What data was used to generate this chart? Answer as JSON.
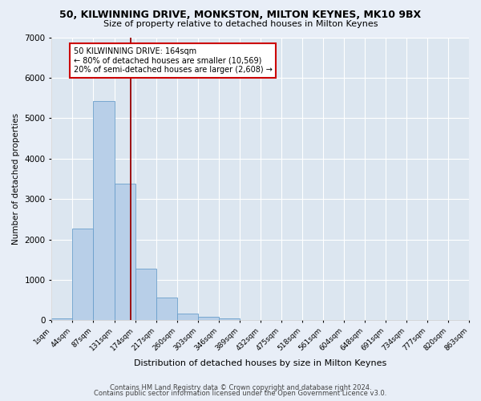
{
  "title1": "50, KILWINNING DRIVE, MONKSTON, MILTON KEYNES, MK10 9BX",
  "title2": "Size of property relative to detached houses in Milton Keynes",
  "xlabel": "Distribution of detached houses by size in Milton Keynes",
  "ylabel": "Number of detached properties",
  "footer1": "Contains HM Land Registry data © Crown copyright and database right 2024.",
  "footer2": "Contains public sector information licensed under the Open Government Licence v3.0.",
  "annotation_line1": "50 KILWINNING DRIVE: 164sqm",
  "annotation_line2": "← 80% of detached houses are smaller (10,569)",
  "annotation_line3": "20% of semi-detached houses are larger (2,608) →",
  "bar_color": "#b8cfe8",
  "bar_edge_color": "#6a9fcb",
  "vline_color": "#990000",
  "vline_x": 164,
  "bin_edges": [
    1,
    44,
    87,
    131,
    174,
    217,
    260,
    303,
    346,
    389,
    432,
    475,
    518,
    561,
    604,
    648,
    691,
    734,
    777,
    820,
    863
  ],
  "bar_heights": [
    55,
    2270,
    5430,
    3380,
    1270,
    570,
    175,
    90,
    55,
    10,
    5,
    2,
    1,
    0,
    0,
    0,
    0,
    0,
    0,
    0
  ],
  "ylim": [
    0,
    7000
  ],
  "yticks": [
    0,
    1000,
    2000,
    3000,
    4000,
    5000,
    6000,
    7000
  ],
  "bg_color": "#e8eef7",
  "plot_bg_color": "#dce6f0",
  "grid_color": "#ffffff"
}
